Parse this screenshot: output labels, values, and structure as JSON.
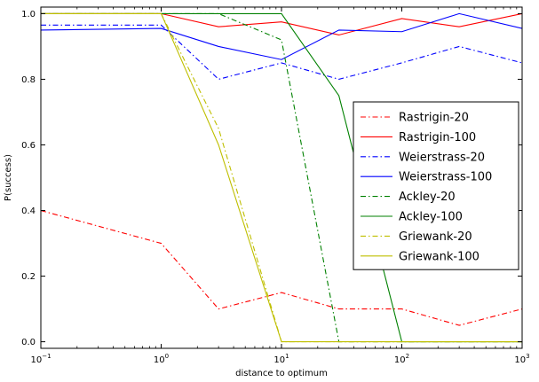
{
  "chart_data": {
    "type": "line",
    "xlabel": "distance to optimum",
    "ylabel": "P(success)",
    "xscale": "log",
    "xlim": [
      0.1,
      1000
    ],
    "ylim": [
      -0.02,
      1.02
    ],
    "grid": false,
    "legend_position": "center-right",
    "x_ticks": [
      {
        "value": 0.1,
        "base": "10",
        "exp": "−1"
      },
      {
        "value": 1,
        "base": "10",
        "exp": "0"
      },
      {
        "value": 10,
        "base": "10",
        "exp": "1"
      },
      {
        "value": 100,
        "base": "10",
        "exp": "2"
      },
      {
        "value": 1000,
        "base": "10",
        "exp": "3"
      }
    ],
    "y_ticks": [
      {
        "value": 0.0,
        "label": "0.0"
      },
      {
        "value": 0.2,
        "label": "0.2"
      },
      {
        "value": 0.4,
        "label": "0.4"
      },
      {
        "value": 0.6,
        "label": "0.6"
      },
      {
        "value": 0.8,
        "label": "0.8"
      },
      {
        "value": 1.0,
        "label": "1.0"
      }
    ],
    "series": [
      {
        "name": "Rastrigin-20",
        "color": "#ff0000",
        "dash": "dashdot",
        "x": [
          0.1,
          1,
          3,
          10,
          30,
          100,
          300,
          1000
        ],
        "y": [
          0.4,
          0.3,
          0.1,
          0.15,
          0.1,
          0.1,
          0.05,
          0.1
        ]
      },
      {
        "name": "Rastrigin-100",
        "color": "#ff0000",
        "dash": "solid",
        "x": [
          0.1,
          1,
          3,
          10,
          30,
          100,
          300,
          1000
        ],
        "y": [
          1.0,
          1.0,
          0.96,
          0.975,
          0.935,
          0.985,
          0.96,
          1.0
        ]
      },
      {
        "name": "Weierstrass-20",
        "color": "#0000ff",
        "dash": "dashdot",
        "x": [
          0.1,
          1,
          3,
          10,
          30,
          100,
          300,
          1000
        ],
        "y": [
          0.965,
          0.965,
          0.8,
          0.85,
          0.8,
          0.85,
          0.9,
          0.85
        ]
      },
      {
        "name": "Weierstrass-100",
        "color": "#0000ff",
        "dash": "solid",
        "x": [
          0.1,
          1,
          3,
          10,
          30,
          100,
          300,
          1000
        ],
        "y": [
          0.95,
          0.955,
          0.9,
          0.86,
          0.95,
          0.945,
          1.0,
          0.955
        ]
      },
      {
        "name": "Ackley-20",
        "color": "#008000",
        "dash": "dashdot",
        "x": [
          0.1,
          1,
          3,
          10,
          30,
          100,
          300,
          1000
        ],
        "y": [
          1.0,
          1.0,
          1.0,
          0.92,
          0.0,
          0.0,
          0.0,
          0.0
        ]
      },
      {
        "name": "Ackley-100",
        "color": "#008000",
        "dash": "solid",
        "x": [
          0.1,
          1,
          3,
          10,
          30,
          100,
          300,
          1000
        ],
        "y": [
          1.0,
          1.0,
          1.0,
          1.0,
          0.75,
          0.0,
          0.0,
          0.0
        ]
      },
      {
        "name": "Griewank-20",
        "color": "#bfbf00",
        "dash": "dashdot",
        "x": [
          0.1,
          1,
          3,
          10,
          30,
          100,
          300,
          1000
        ],
        "y": [
          1.0,
          1.0,
          0.65,
          0.0,
          0.0,
          0.0,
          0.0,
          0.0
        ]
      },
      {
        "name": "Griewank-100",
        "color": "#bfbf00",
        "dash": "solid",
        "x": [
          0.1,
          1,
          3,
          10,
          30,
          100,
          300,
          1000
        ],
        "y": [
          1.0,
          1.0,
          0.6,
          0.0,
          0.0,
          0.0,
          0.0,
          0.0
        ]
      }
    ]
  }
}
